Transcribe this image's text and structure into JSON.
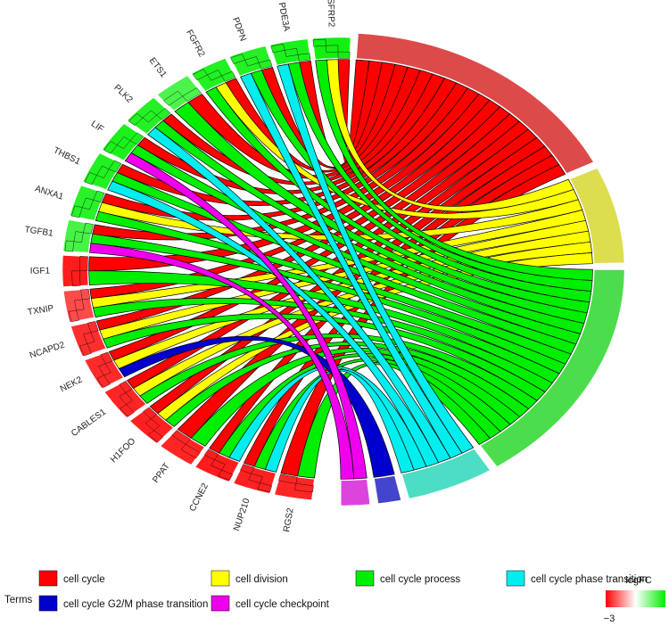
{
  "chart_data": {
    "type": "chord",
    "genes": [
      {
        "name": "SFRP2",
        "logFC": 2.6,
        "terms": [
          "cell cycle",
          "cell division",
          "cell cycle process"
        ]
      },
      {
        "name": "PDE3A",
        "logFC": 2.4,
        "terms": [
          "cell cycle",
          "cell cycle process",
          "cell cycle phase transition"
        ]
      },
      {
        "name": "PDPN",
        "logFC": 2.2,
        "terms": [
          "cell cycle",
          "cell cycle process",
          "cell cycle phase transition"
        ]
      },
      {
        "name": "FGFR2",
        "logFC": 2.3,
        "terms": [
          "cell cycle",
          "cell division",
          "cell cycle process"
        ]
      },
      {
        "name": "ETS1",
        "logFC": 1.4,
        "terms": [
          "cell cycle",
          "cell cycle process"
        ]
      },
      {
        "name": "PLK2",
        "logFC": 2.2,
        "terms": [
          "cell cycle",
          "cell cycle process",
          "cell cycle phase transition"
        ]
      },
      {
        "name": "LIF",
        "logFC": 2.4,
        "terms": [
          "cell cycle",
          "cell cycle process",
          "cell cycle checkpoint"
        ]
      },
      {
        "name": "THBS1",
        "logFC": 2.3,
        "terms": [
          "cell cycle",
          "cell cycle process",
          "cell cycle phase transition"
        ]
      },
      {
        "name": "ANXA1",
        "logFC": 2.1,
        "terms": [
          "cell cycle",
          "cell division",
          "cell cycle process"
        ]
      },
      {
        "name": "TGFB1",
        "logFC": 1.5,
        "terms": [
          "cell cycle",
          "cell cycle process",
          "cell cycle checkpoint"
        ]
      },
      {
        "name": "IGF1",
        "logFC": -2.4,
        "terms": [
          "cell cycle",
          "cell cycle process"
        ]
      },
      {
        "name": "TXNIP",
        "logFC": -1.4,
        "terms": [
          "cell cycle",
          "cell division",
          "cell cycle process"
        ]
      },
      {
        "name": "NCAPD2",
        "logFC": -2.0,
        "terms": [
          "cell cycle",
          "cell division",
          "cell cycle process"
        ]
      },
      {
        "name": "NEK2",
        "logFC": -2.1,
        "terms": [
          "cell cycle",
          "cell division",
          "cell cycle G2/M phase transition"
        ]
      },
      {
        "name": "CABLES1",
        "logFC": -2.2,
        "terms": [
          "cell cycle",
          "cell division",
          "cell cycle process"
        ]
      },
      {
        "name": "H1FOO",
        "logFC": -2.3,
        "terms": [
          "cell cycle",
          "cell division",
          "cell cycle process"
        ]
      },
      {
        "name": "PPAT",
        "logFC": -2.2,
        "terms": [
          "cell cycle",
          "cell cycle process"
        ]
      },
      {
        "name": "CCNE2",
        "logFC": -2.4,
        "terms": [
          "cell cycle",
          "cell cycle process",
          "cell cycle phase transition"
        ]
      },
      {
        "name": "NUP210",
        "logFC": -2.3,
        "terms": [
          "cell cycle",
          "cell cycle process",
          "cell cycle phase transition"
        ]
      },
      {
        "name": "RGS2",
        "logFC": -2.2,
        "terms": [
          "cell cycle",
          "cell cycle process"
        ]
      }
    ],
    "terms": [
      {
        "name": "cell cycle",
        "color": "#ff0000",
        "block_color": "#dd4a4a"
      },
      {
        "name": "cell division",
        "color": "#ffff00",
        "block_color": "#dddd50"
      },
      {
        "name": "cell cycle process",
        "color": "#00ee00",
        "block_color": "#4cdd4c"
      },
      {
        "name": "cell cycle phase transition",
        "color": "#00eeee",
        "block_color": "#4cddc4"
      },
      {
        "name": "cell cycle G2/M phase transition",
        "color": "#0000cc",
        "block_color": "#4444cc"
      },
      {
        "name": "cell cycle checkpoint",
        "color": "#ee00ee",
        "block_color": "#dd44dd"
      }
    ],
    "legend": {
      "title": "Terms",
      "entries": [
        "cell cycle",
        "cell division",
        "cell cycle process",
        "cell cycle phase transition",
        "cell cycle G2/M phase transition",
        "cell cycle checkpoint"
      ]
    },
    "colorbar": {
      "title": "logFC",
      "min_label": "−3",
      "low_color": "#ff0000",
      "mid_color": "#ffffff",
      "high_color": "#00ee00"
    }
  }
}
